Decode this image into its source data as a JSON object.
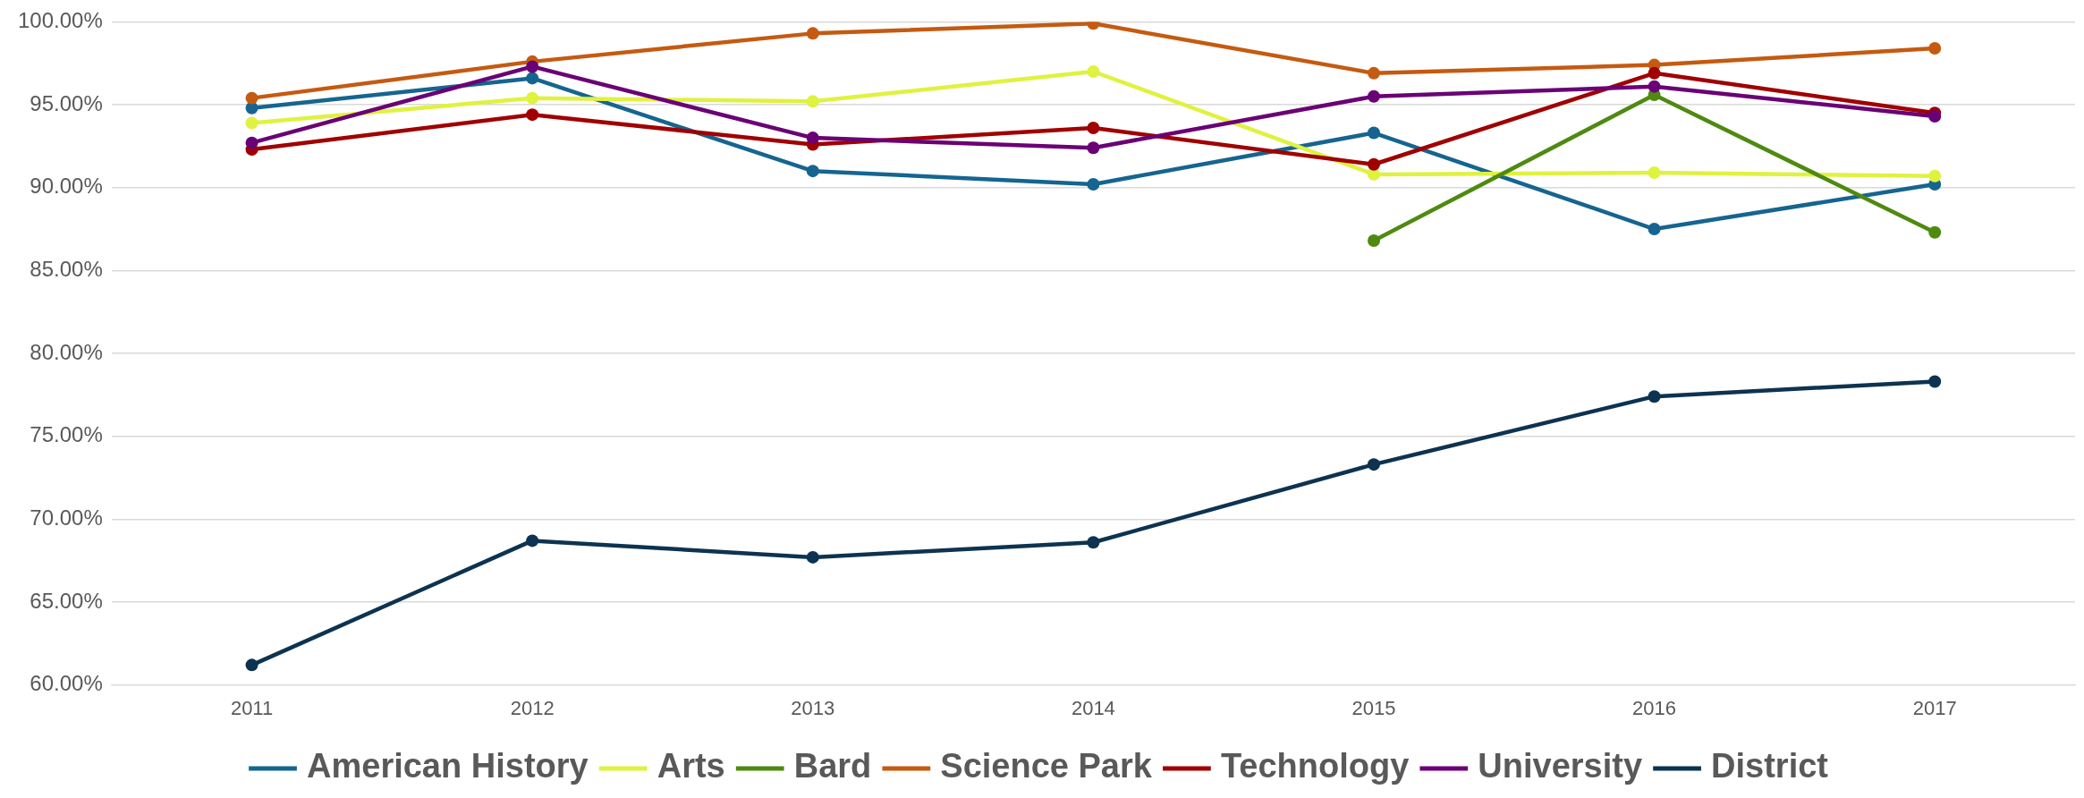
{
  "chart_data": {
    "type": "line",
    "categories": [
      "2011",
      "2012",
      "2013",
      "2014",
      "2015",
      "2016",
      "2017"
    ],
    "series": [
      {
        "name": "American History",
        "color": "#156590",
        "values": [
          94.8,
          96.6,
          91.0,
          90.2,
          93.3,
          87.5,
          90.2
        ]
      },
      {
        "name": "Arts",
        "color": "#dff23f",
        "values": [
          93.9,
          95.4,
          95.2,
          97.0,
          90.8,
          90.9,
          90.7
        ]
      },
      {
        "name": "Bard",
        "color": "#4f8a10",
        "values": [
          null,
          null,
          null,
          null,
          86.8,
          95.6,
          87.3
        ]
      },
      {
        "name": "Science Park",
        "color": "#c55a11",
        "values": [
          95.4,
          97.6,
          99.3,
          99.9,
          96.9,
          97.4,
          98.4
        ]
      },
      {
        "name": "Technology",
        "color": "#a00000",
        "values": [
          92.3,
          94.4,
          92.6,
          93.6,
          91.4,
          96.9,
          94.5
        ]
      },
      {
        "name": "University",
        "color": "#6a0075",
        "values": [
          92.7,
          97.3,
          93.0,
          92.4,
          95.5,
          96.1,
          94.3
        ]
      },
      {
        "name": "District",
        "color": "#0d3350",
        "values": [
          61.2,
          68.7,
          67.7,
          68.6,
          73.3,
          77.4,
          78.3
        ]
      }
    ],
    "ylim": [
      60,
      100
    ],
    "yticks": [
      {
        "value": 60,
        "label": "60.00%"
      },
      {
        "value": 65,
        "label": "65.00%"
      },
      {
        "value": 70,
        "label": "70.00%"
      },
      {
        "value": 75,
        "label": "75.00%"
      },
      {
        "value": 80,
        "label": "80.00%"
      },
      {
        "value": 85,
        "label": "85.00%"
      },
      {
        "value": 90,
        "label": "90.00%"
      },
      {
        "value": 95,
        "label": "95.00%"
      },
      {
        "value": 100,
        "label": "100.00%"
      }
    ],
    "grid": "y",
    "legend": "bottom",
    "marker": "circle",
    "line_style": "solid"
  }
}
